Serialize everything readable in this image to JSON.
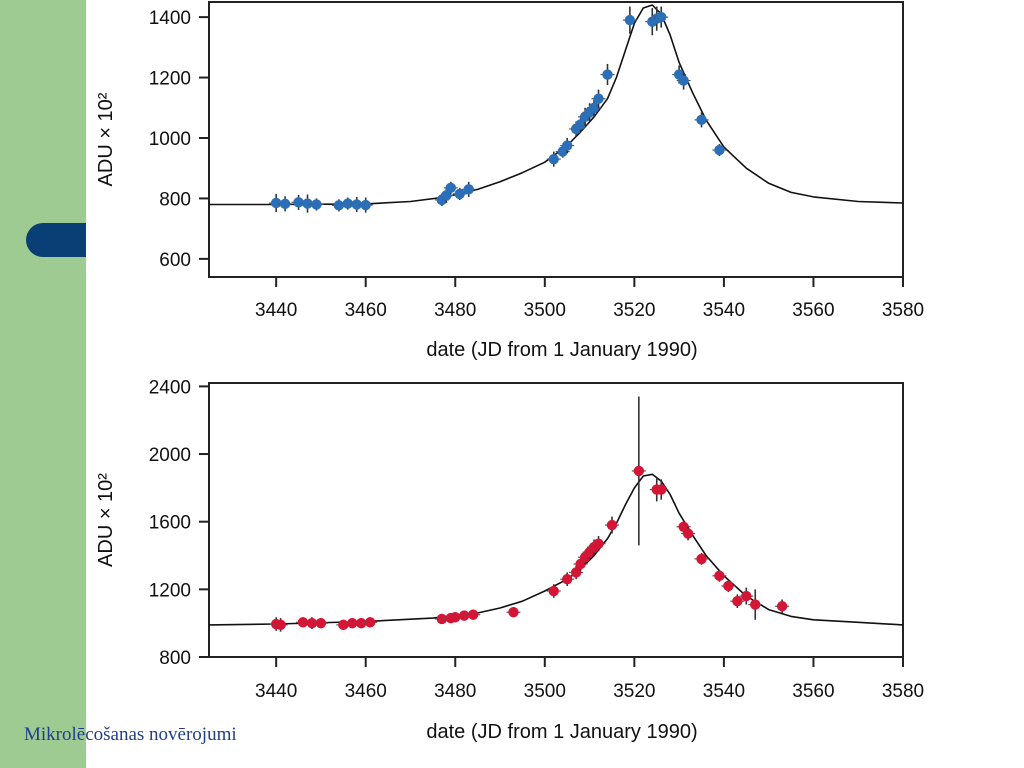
{
  "footer": {
    "text": "Mikrolēcošanas novērojumi"
  },
  "colors": {
    "sidebar": "#9ecb91",
    "tab": "#0a3f75",
    "series_top": "#2a6fb8",
    "series_bottom": "#d41535"
  },
  "chart_data": [
    {
      "type": "scatter",
      "title": "",
      "xlabel": "date (JD from 1 January 1990)",
      "ylabel": "ADU × 10²",
      "xlim": [
        3425,
        3580
      ],
      "ylim": [
        540,
        1450
      ],
      "xticks": [
        3440,
        3460,
        3480,
        3500,
        3520,
        3540,
        3560,
        3580
      ],
      "xtick_labels": [
        "3440",
        "3460",
        "3480",
        "3500",
        "3520",
        "3540",
        "3560",
        "3580"
      ],
      "yticks": [
        600,
        800,
        1000,
        1200,
        1400
      ],
      "ytick_labels": [
        "600",
        "800",
        "1000",
        "1200",
        "1400"
      ],
      "grid": false,
      "color": "#2a6fb8",
      "fit_curve": {
        "x": [
          3425,
          3440,
          3460,
          3470,
          3478,
          3485,
          3490,
          3495,
          3500,
          3505,
          3508,
          3511,
          3514,
          3516,
          3518,
          3520,
          3522,
          3524,
          3526,
          3528,
          3530,
          3533,
          3536,
          3540,
          3545,
          3550,
          3555,
          3560,
          3570,
          3580
        ],
        "y": [
          780,
          780,
          782,
          790,
          805,
          830,
          855,
          885,
          920,
          975,
          1020,
          1070,
          1130,
          1200,
          1290,
          1380,
          1430,
          1440,
          1410,
          1340,
          1250,
          1150,
          1060,
          970,
          900,
          850,
          820,
          805,
          790,
          785
        ]
      },
      "points": [
        {
          "x": 3440,
          "y": 785,
          "err": 30
        },
        {
          "x": 3442,
          "y": 782,
          "err": 25
        },
        {
          "x": 3445,
          "y": 787,
          "err": 25
        },
        {
          "x": 3447,
          "y": 783,
          "err": 30
        },
        {
          "x": 3449,
          "y": 780,
          "err": 20
        },
        {
          "x": 3454,
          "y": 777,
          "err": 20
        },
        {
          "x": 3456,
          "y": 783,
          "err": 20
        },
        {
          "x": 3458,
          "y": 780,
          "err": 25
        },
        {
          "x": 3460,
          "y": 778,
          "err": 25
        },
        {
          "x": 3477,
          "y": 795,
          "err": 20
        },
        {
          "x": 3478,
          "y": 810,
          "err": 25
        },
        {
          "x": 3479,
          "y": 835,
          "err": 20
        },
        {
          "x": 3481,
          "y": 815,
          "err": 20
        },
        {
          "x": 3483,
          "y": 830,
          "err": 25
        },
        {
          "x": 3502,
          "y": 930,
          "err": 25
        },
        {
          "x": 3504,
          "y": 955,
          "err": 20
        },
        {
          "x": 3505,
          "y": 975,
          "err": 25
        },
        {
          "x": 3507,
          "y": 1030,
          "err": 25
        },
        {
          "x": 3508,
          "y": 1045,
          "err": 25
        },
        {
          "x": 3509,
          "y": 1070,
          "err": 30
        },
        {
          "x": 3510,
          "y": 1085,
          "err": 30
        },
        {
          "x": 3511,
          "y": 1100,
          "err": 30
        },
        {
          "x": 3512,
          "y": 1130,
          "err": 30
        },
        {
          "x": 3514,
          "y": 1210,
          "err": 35
        },
        {
          "x": 3519,
          "y": 1390,
          "err": 45
        },
        {
          "x": 3524,
          "y": 1385,
          "err": 45
        },
        {
          "x": 3525,
          "y": 1395,
          "err": 40
        },
        {
          "x": 3526,
          "y": 1400,
          "err": 35
        },
        {
          "x": 3530,
          "y": 1210,
          "err": 30
        },
        {
          "x": 3531,
          "y": 1190,
          "err": 30
        },
        {
          "x": 3535,
          "y": 1060,
          "err": 25
        },
        {
          "x": 3539,
          "y": 960,
          "err": 20
        }
      ]
    },
    {
      "type": "scatter",
      "title": "",
      "xlabel": "date (JD from 1 January 1990)",
      "ylabel": "ADU × 10²",
      "xlim": [
        3425,
        3580
      ],
      "ylim": [
        800,
        2420
      ],
      "xticks": [
        3440,
        3460,
        3480,
        3500,
        3520,
        3540,
        3560,
        3580
      ],
      "xtick_labels": [
        "3440",
        "3460",
        "3480",
        "3500",
        "3520",
        "3540",
        "3560",
        "3580"
      ],
      "yticks": [
        800,
        1200,
        1600,
        2000,
        2400
      ],
      "ytick_labels": [
        "800",
        "1200",
        "1600",
        "2000",
        "2400"
      ],
      "grid": false,
      "color": "#d41535",
      "fit_curve": {
        "x": [
          3425,
          3440,
          3460,
          3475,
          3485,
          3490,
          3495,
          3500,
          3505,
          3508,
          3511,
          3514,
          3516,
          3518,
          3520,
          3522,
          3524,
          3526,
          3528,
          3530,
          3533,
          3536,
          3540,
          3545,
          3550,
          3555,
          3560,
          3570,
          3580
        ],
        "y": [
          990,
          995,
          1010,
          1030,
          1060,
          1090,
          1130,
          1190,
          1260,
          1320,
          1400,
          1500,
          1590,
          1700,
          1800,
          1870,
          1880,
          1840,
          1760,
          1650,
          1520,
          1400,
          1280,
          1160,
          1080,
          1040,
          1020,
          1005,
          990
        ]
      },
      "points": [
        {
          "x": 3440,
          "y": 995,
          "err": 40
        },
        {
          "x": 3441,
          "y": 990,
          "err": 40
        },
        {
          "x": 3446,
          "y": 1005,
          "err": 30
        },
        {
          "x": 3448,
          "y": 1000,
          "err": 35
        },
        {
          "x": 3450,
          "y": 1000,
          "err": 30
        },
        {
          "x": 3455,
          "y": 990,
          "err": 30
        },
        {
          "x": 3457,
          "y": 1000,
          "err": 30
        },
        {
          "x": 3459,
          "y": 1000,
          "err": 30
        },
        {
          "x": 3461,
          "y": 1005,
          "err": 30
        },
        {
          "x": 3477,
          "y": 1025,
          "err": 30
        },
        {
          "x": 3479,
          "y": 1030,
          "err": 30
        },
        {
          "x": 3480,
          "y": 1035,
          "err": 30
        },
        {
          "x": 3482,
          "y": 1045,
          "err": 30
        },
        {
          "x": 3484,
          "y": 1050,
          "err": 30
        },
        {
          "x": 3493,
          "y": 1065,
          "err": 30
        },
        {
          "x": 3502,
          "y": 1190,
          "err": 40
        },
        {
          "x": 3505,
          "y": 1260,
          "err": 40
        },
        {
          "x": 3507,
          "y": 1300,
          "err": 40
        },
        {
          "x": 3508,
          "y": 1350,
          "err": 40
        },
        {
          "x": 3509,
          "y": 1390,
          "err": 40
        },
        {
          "x": 3510,
          "y": 1420,
          "err": 40
        },
        {
          "x": 3511,
          "y": 1450,
          "err": 45
        },
        {
          "x": 3512,
          "y": 1470,
          "err": 45
        },
        {
          "x": 3515,
          "y": 1580,
          "err": 50
        },
        {
          "x": 3521,
          "y": 1900,
          "err": 440
        },
        {
          "x": 3525,
          "y": 1790,
          "err": 70
        },
        {
          "x": 3526,
          "y": 1790,
          "err": 60
        },
        {
          "x": 3531,
          "y": 1570,
          "err": 40
        },
        {
          "x": 3532,
          "y": 1530,
          "err": 40
        },
        {
          "x": 3535,
          "y": 1380,
          "err": 35
        },
        {
          "x": 3539,
          "y": 1280,
          "err": 35
        },
        {
          "x": 3541,
          "y": 1220,
          "err": 35
        },
        {
          "x": 3543,
          "y": 1130,
          "err": 40
        },
        {
          "x": 3545,
          "y": 1160,
          "err": 50
        },
        {
          "x": 3547,
          "y": 1110,
          "err": 90
        },
        {
          "x": 3553,
          "y": 1100,
          "err": 40
        }
      ]
    }
  ]
}
